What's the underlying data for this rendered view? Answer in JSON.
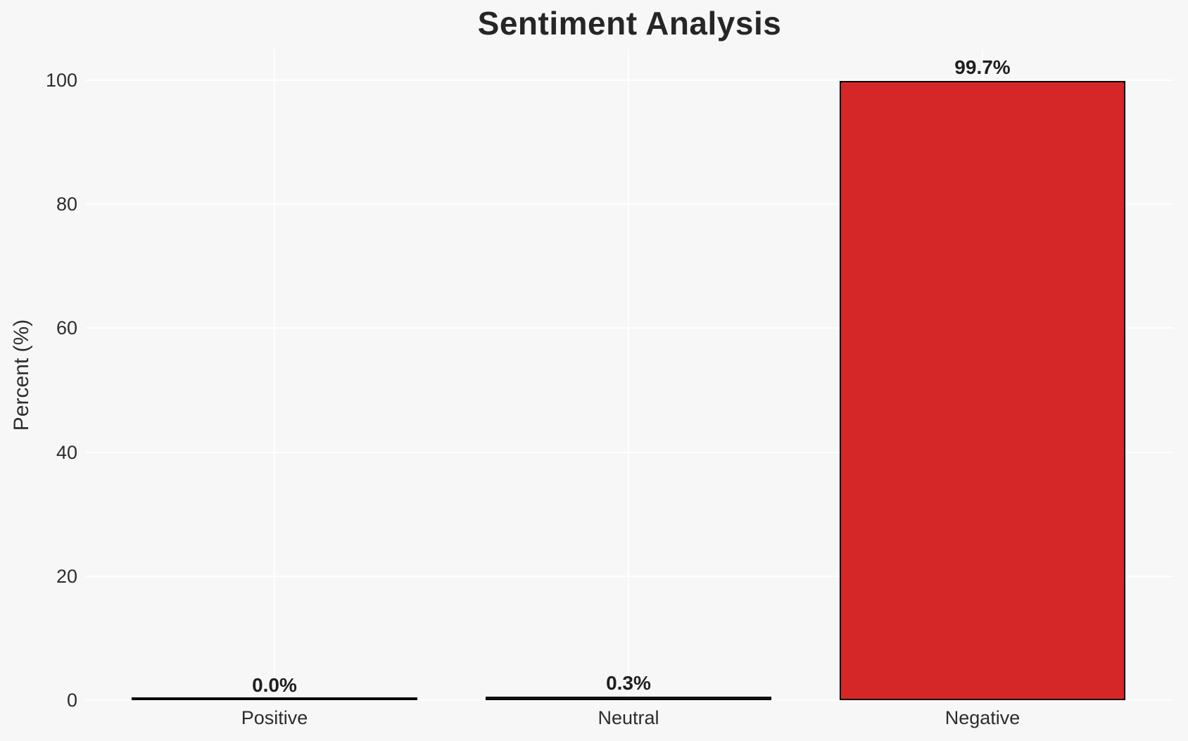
{
  "figure": {
    "background_color": "#f7f7f8",
    "grid_color": "#ffffff",
    "text_color": "#2d2d2d",
    "title_color": "#262626"
  },
  "chart_data": {
    "type": "bar",
    "title": "Sentiment Analysis",
    "xlabel": "",
    "ylabel": "Percent (%)",
    "categories": [
      "Positive",
      "Neutral",
      "Negative"
    ],
    "values": [
      0.0,
      0.3,
      99.7
    ],
    "value_labels": [
      "0.0%",
      "0.3%",
      "99.7%"
    ],
    "bar_fills": [
      "#1a1a1a",
      "#1a1a1a",
      "#d62728"
    ],
    "bar_edge_color": "#000000",
    "y_ticks": [
      0,
      20,
      40,
      60,
      80,
      100
    ],
    "ylim": [
      0,
      105
    ],
    "grid": true,
    "legend_position": "none"
  }
}
